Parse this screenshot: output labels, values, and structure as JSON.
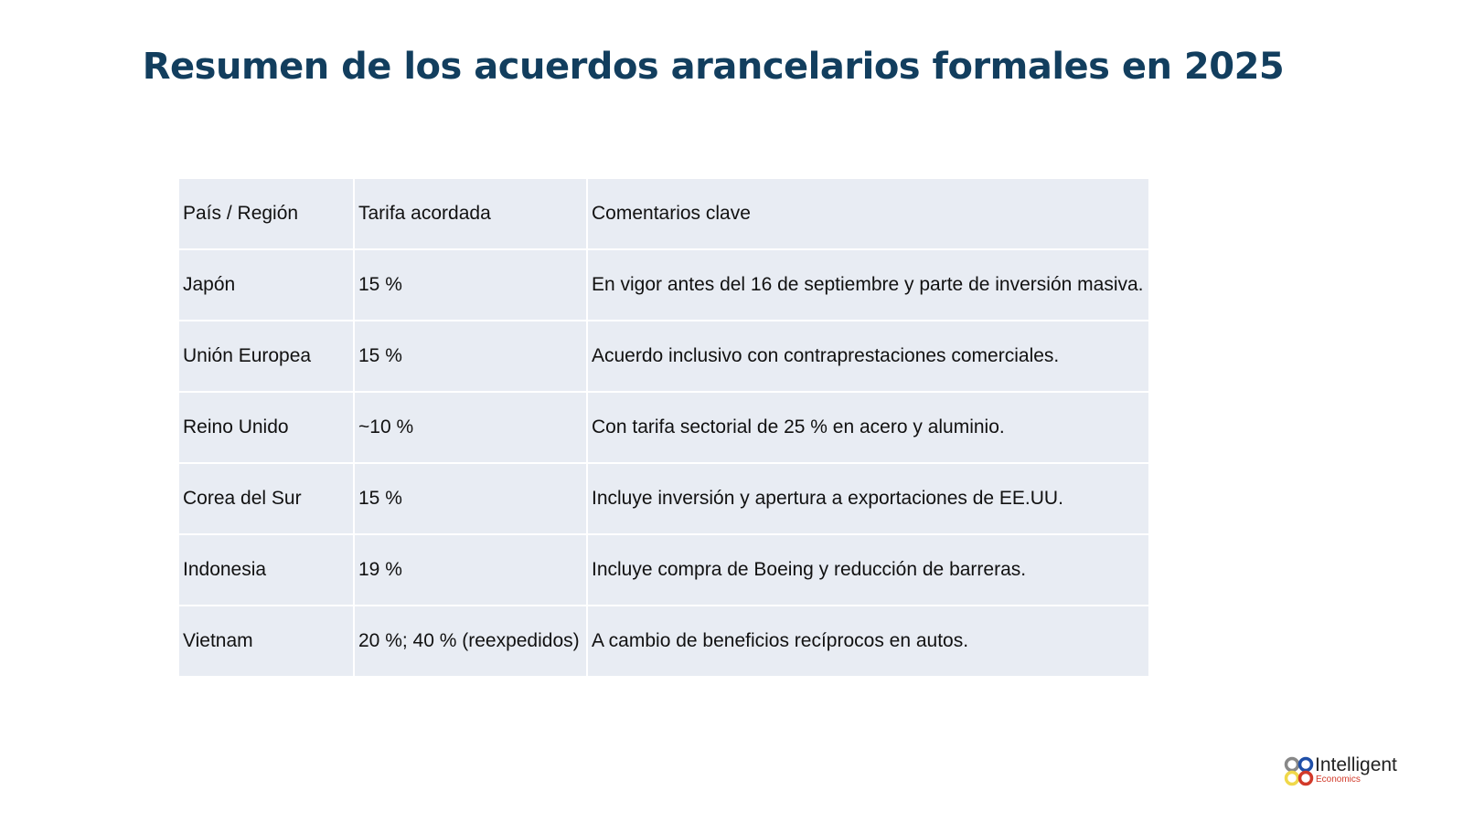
{
  "title": "Resumen de los acuerdos arancelarios formales en 2025",
  "table": {
    "headers": [
      "País / Región",
      "Tarifa acordada",
      "Comentarios clave"
    ],
    "rows": [
      [
        "Japón",
        "15 %",
        "En vigor antes del 16 de septiembre y parte de inversión masiva."
      ],
      [
        "Unión Europea",
        "15 %",
        "Acuerdo inclusivo con contraprestaciones comerciales."
      ],
      [
        "Reino Unido",
        "~10 %",
        "Con tarifa sectorial de 25 % en acero y aluminio."
      ],
      [
        "Corea del Sur",
        "15 %",
        "Incluye inversión y apertura a exportaciones de EE.UU."
      ],
      [
        "Indonesia",
        "19 %",
        "Incluye compra de Boeing y reducción de barreras."
      ],
      [
        "Vietnam",
        "20 %; 40 % (reexpedidos)",
        "A cambio de beneficios recíprocos en autos."
      ]
    ]
  },
  "logo": {
    "name": "Intelligent",
    "sub": "Economics"
  }
}
